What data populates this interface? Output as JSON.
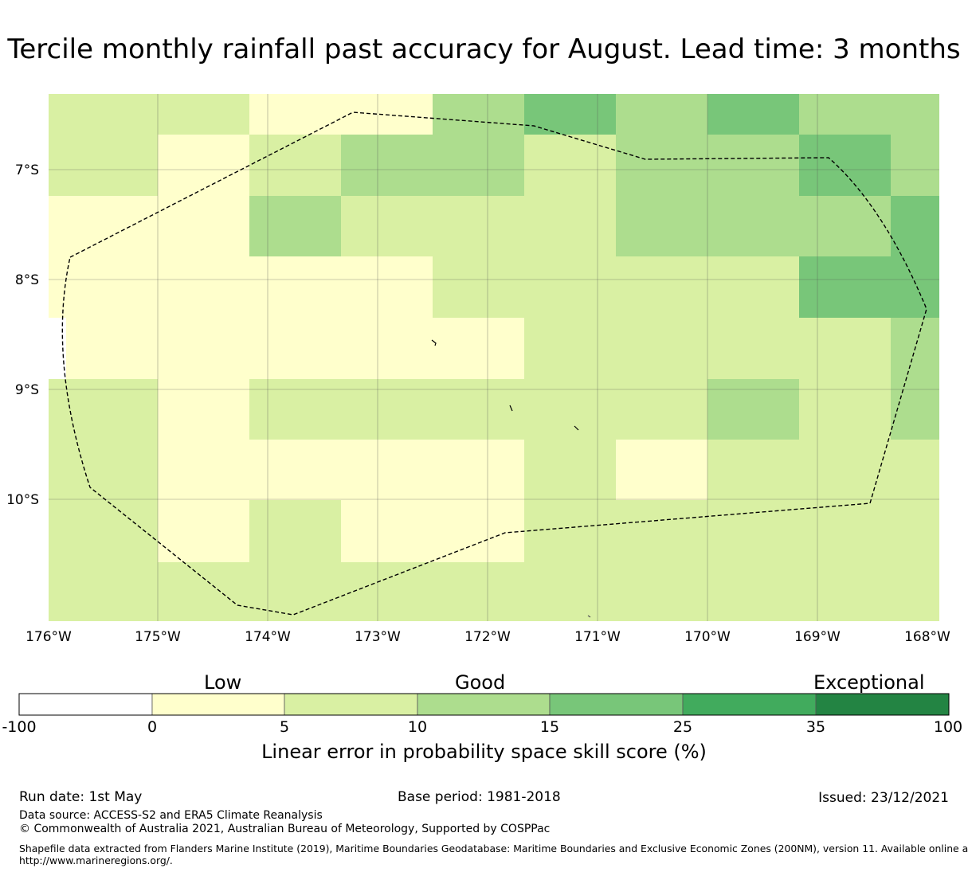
{
  "title": "Tercile monthly rainfall past accuracy for August. Lead time: 3 months",
  "map": {
    "lon_ticks": [
      "176°W",
      "175°W",
      "174°W",
      "173°W",
      "172°W",
      "171°W",
      "170°W",
      "169°W",
      "168°W"
    ],
    "lat_ticks": [
      "7°S",
      "8°S",
      "9°S",
      "10°S"
    ],
    "lon_range": [
      -176,
      -168
    ],
    "lat_range": [
      -11.2,
      -6.3
    ],
    "grid_lines": true
  },
  "colorbar": {
    "categories": [
      "Low",
      "Good",
      "Exceptional"
    ],
    "ticks": [
      "-100",
      "0",
      "5",
      "10",
      "15",
      "25",
      "35",
      "100"
    ],
    "colors": [
      "#ffffff",
      "#ffffcc",
      "#d9f0a3",
      "#addd8e",
      "#78c679",
      "#41ab5d",
      "#238443"
    ],
    "label": "Linear error in probability space skill score (%)"
  },
  "footer": {
    "run_date": "Run date: 1st May",
    "base_period": "Base period: 1981-2018",
    "issued": "Issued: 23/12/2021",
    "data_source": "Data source: ACCESS-S2 and ERA5 Climate Reanalysis",
    "copyright": "© Commonwealth of Australia 2021, Australian Bureau of Meteorology, Supported by COSPPac",
    "shapefile_line1": "Shapefile data extracted from Flanders Marine Institute (2019), Maritime Boundaries Geodatabase: Maritime Boundaries and Exclusive Economic Zones (200NM), version 11. Available online at",
    "shapefile_line2": "http://www.marineregions.org/."
  }
}
